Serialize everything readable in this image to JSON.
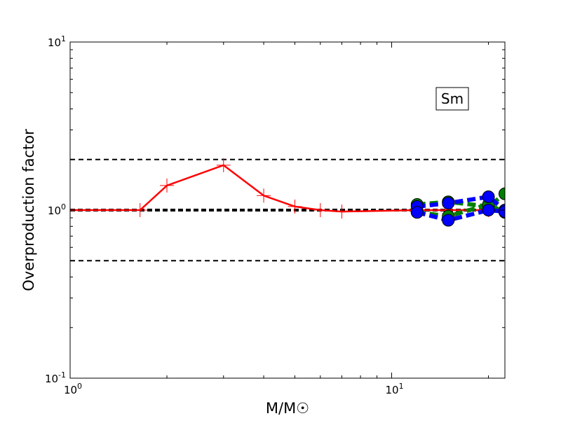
{
  "chart_data": {
    "type": "line",
    "xscale": "log",
    "yscale": "log",
    "xlim": [
      1,
      22.5
    ],
    "ylim": [
      0.1,
      10
    ],
    "xlabel": "M/M☉",
    "ylabel": "Overproduction factor",
    "x_ticks": [
      {
        "value": 1,
        "base": "10",
        "exp": "0"
      },
      {
        "value": 10,
        "base": "10",
        "exp": "1"
      }
    ],
    "y_ticks": [
      {
        "value": 0.1,
        "base": "10",
        "exp": "-1"
      },
      {
        "value": 1,
        "base": "10",
        "exp": "0"
      },
      {
        "value": 10,
        "base": "10",
        "exp": "1"
      }
    ],
    "annotation": {
      "text": "Sm",
      "x": 18,
      "y": 4.5
    },
    "reference_lines": [
      {
        "y": 2.0,
        "style": "dashed",
        "color": "#000000",
        "weight": "thin"
      },
      {
        "y": 1.0,
        "style": "dashed",
        "color": "#000000",
        "weight": "thick"
      },
      {
        "y": 0.5,
        "style": "dashed",
        "color": "#000000",
        "weight": "thin"
      }
    ],
    "series": [
      {
        "color": "#ff0000",
        "line": "solid",
        "marker": "plus",
        "x": [
          1.0,
          1.65,
          2.0,
          3.0,
          4.0,
          5.0,
          6.0,
          7.0,
          12.0,
          15.0,
          20.0,
          22.5
        ],
        "y": [
          1.0,
          1.0,
          1.4,
          1.85,
          1.22,
          1.05,
          1.0,
          0.98,
          1.0,
          1.0,
          1.0,
          1.0
        ]
      },
      {
        "color": "#008000",
        "line": "dashed",
        "marker": "circle",
        "x": [
          12.0,
          15.0,
          20.0,
          22.5
        ],
        "y": [
          1.08,
          1.12,
          1.05,
          1.25
        ]
      },
      {
        "color": "#008000",
        "line": "dashed",
        "marker": "circle",
        "x": [
          12.0,
          15.0,
          20.0,
          22.5
        ],
        "y": [
          0.97,
          0.92,
          1.08,
          0.97
        ]
      },
      {
        "color": "#0000ff",
        "line": "dashed",
        "marker": "circle",
        "x": [
          12.0,
          15.0,
          20.0,
          22.5
        ],
        "y": [
          1.05,
          1.1,
          1.2,
          1.0
        ]
      },
      {
        "color": "#0000ff",
        "line": "dashed",
        "marker": "circle",
        "x": [
          12.0,
          15.0,
          20.0,
          22.5
        ],
        "y": [
          0.97,
          0.87,
          1.0,
          0.98
        ]
      }
    ]
  }
}
